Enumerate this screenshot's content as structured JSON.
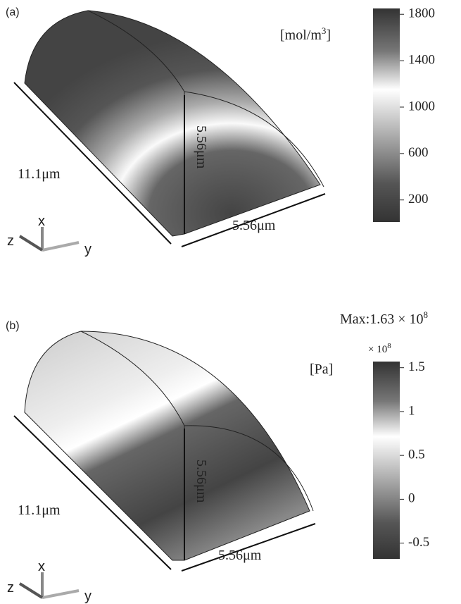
{
  "panels": [
    {
      "label": "(a)",
      "length": "11.1μm",
      "height": "5.56μm",
      "width": "5.56μm",
      "axes": {
        "x": "x",
        "y": "y",
        "z": "z"
      },
      "colorbar": {
        "unit": "[mol/m",
        "unit_sup": "3",
        "unit_end": "]",
        "lim": [
          10,
          1850
        ],
        "ticks": [
          1800,
          1400,
          1000,
          600,
          200
        ]
      }
    },
    {
      "label": "(b)",
      "length": "11.1μm",
      "height": "5.56μm",
      "width": "5.56μm",
      "axes": {
        "x": "x",
        "y": "y",
        "z": "z"
      },
      "max": "Max:1.63 × 10",
      "max_sup": "8",
      "multiplier": "× 10",
      "multiplier_sup": "8",
      "colorbar": {
        "unit": "[Pa]",
        "lim": [
          -0.68,
          1.57
        ],
        "ticks": [
          1.5,
          1,
          0.5,
          0,
          -0.5
        ]
      }
    }
  ]
}
